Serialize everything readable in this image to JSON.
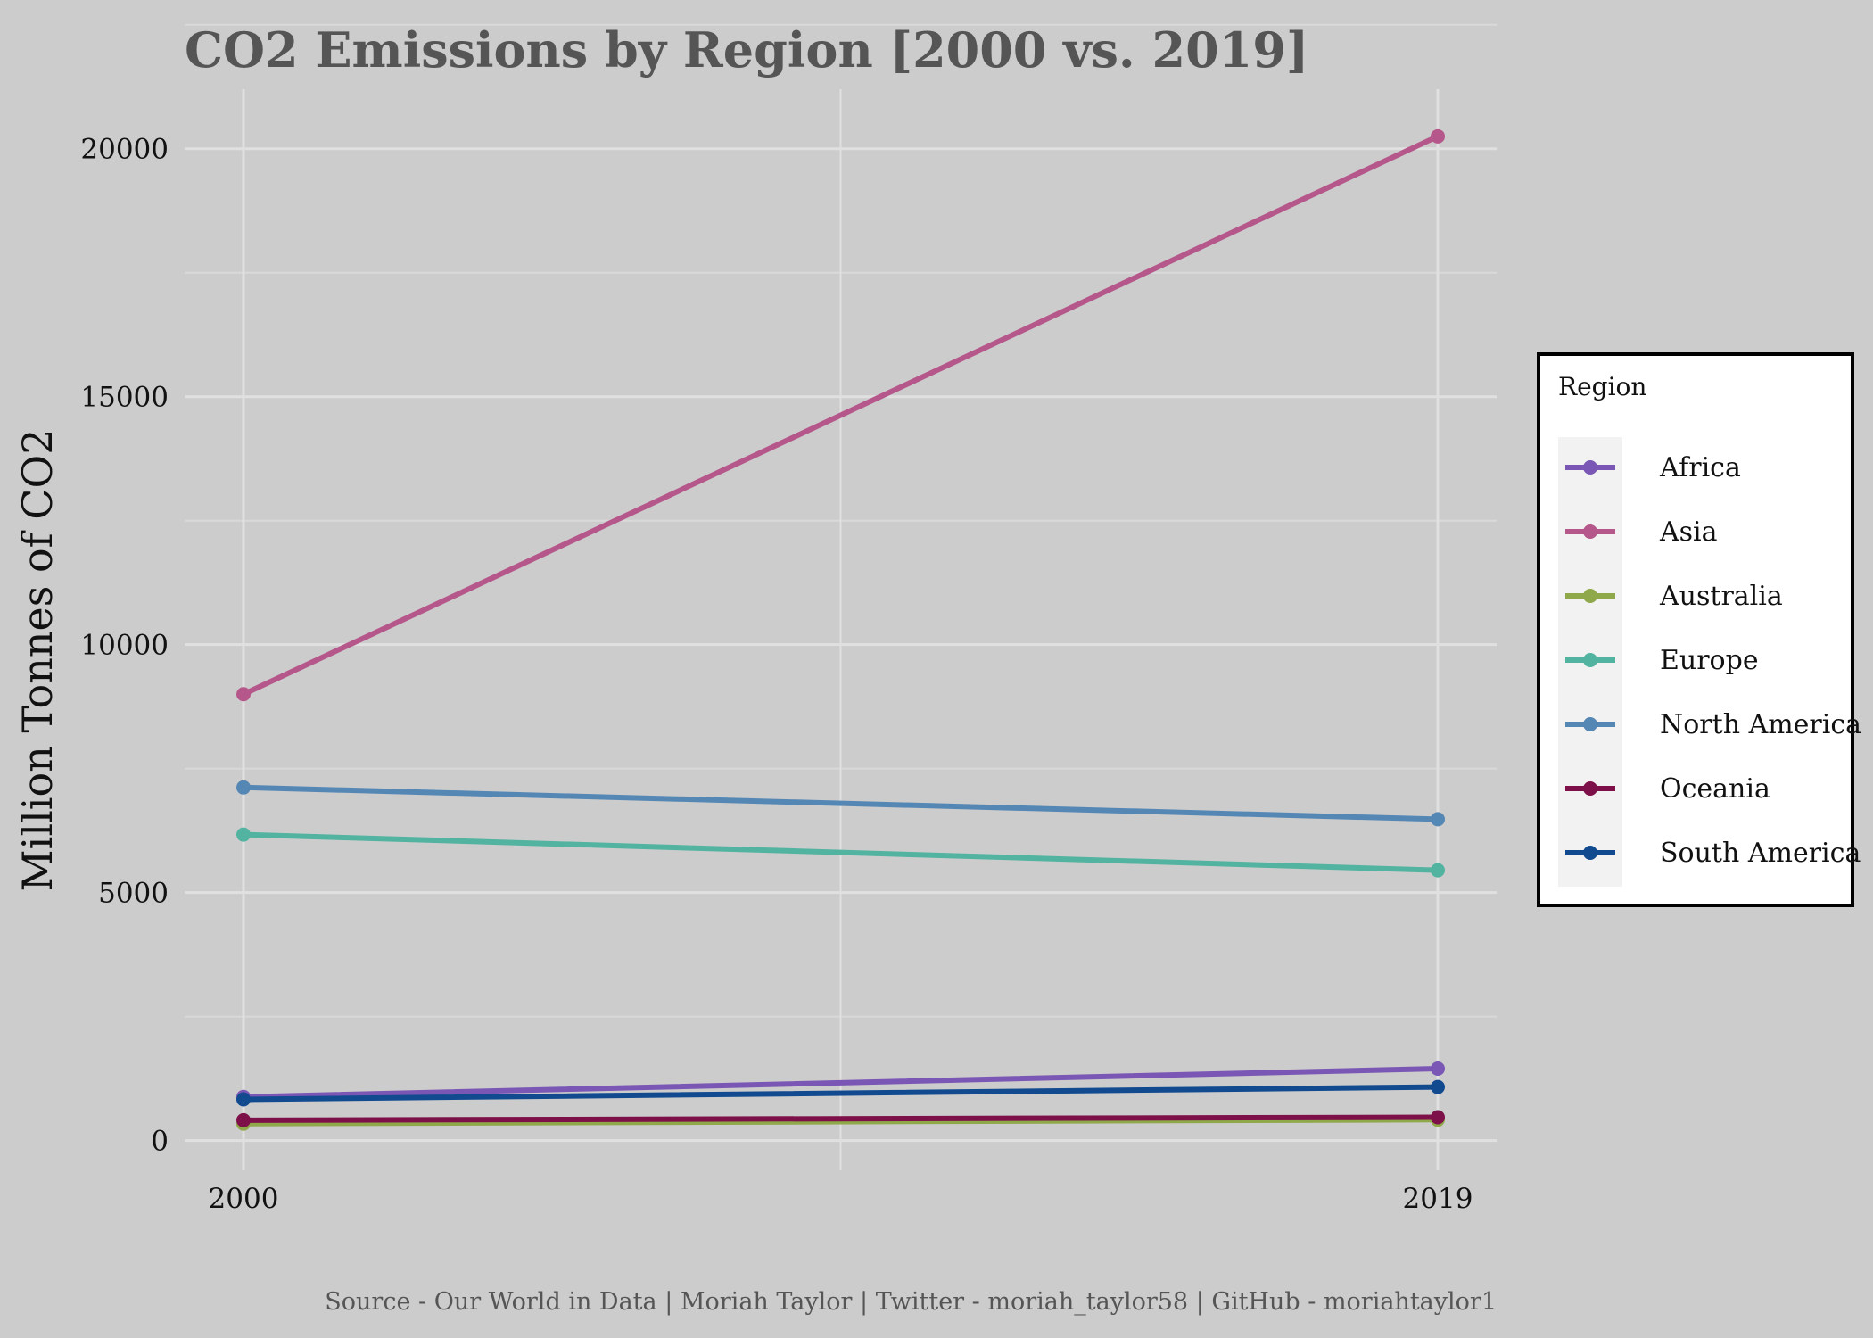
{
  "chart_data": {
    "type": "line",
    "title": "CO2 Emissions by Region [2000 vs. 2019]",
    "xlabel": "",
    "ylabel": "Million Tonnes of CO2",
    "x": [
      2000,
      2019
    ],
    "xticks": [
      "2000",
      "2019"
    ],
    "yticks": [
      0,
      5000,
      10000,
      15000,
      20000
    ],
    "ylim": [
      -600,
      21200
    ],
    "grid": true,
    "legend_title": "Region",
    "legend_position": "right",
    "series": [
      {
        "name": "Africa",
        "color": "#7a57b5",
        "values": [
          880,
          1450
        ]
      },
      {
        "name": "Asia",
        "color": "#b5578a",
        "values": [
          9000,
          20250
        ]
      },
      {
        "name": "Australia",
        "color": "#8fa84a",
        "values": [
          340,
          420
        ]
      },
      {
        "name": "Europe",
        "color": "#52b3a0",
        "values": [
          6170,
          5450
        ]
      },
      {
        "name": "North America",
        "color": "#5587b5",
        "values": [
          7120,
          6480
        ]
      },
      {
        "name": "Oceania",
        "color": "#7d1048",
        "values": [
          410,
          470
        ]
      },
      {
        "name": "South America",
        "color": "#114a8f",
        "values": [
          830,
          1080
        ]
      }
    ],
    "caption": "Source - Our World in Data | Moriah Taylor | Twitter - moriah_taylor58 | GitHub - moriahtaylor1"
  }
}
